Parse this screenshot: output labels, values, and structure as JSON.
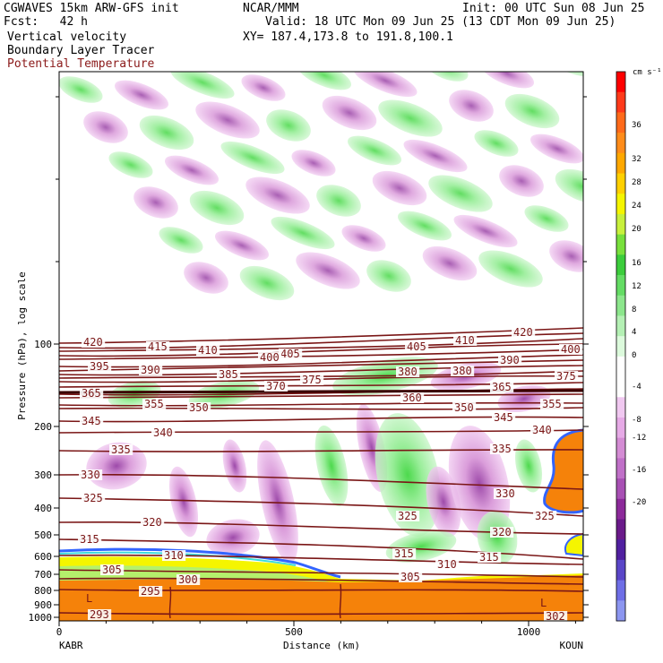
{
  "header": {
    "left_line1": "CGWAVES 15km ARW-GFS init",
    "left_line2": "Fcst:   42 h",
    "left_line3": "Vertical velocity",
    "left_line4": "Boundary Layer Tracer",
    "left_line5": "Potential Temperature",
    "center_line1": "NCAR/MMM",
    "right_line1": "Init: 00 UTC Sun 08 Jun 25",
    "right_line2": "Valid: 18 UTC Mon 09 Jun 25 (13 CDT Mon 09 Jun 25)",
    "right_line3": "XY= 187.4,173.8 to 191.8,100.1"
  },
  "colors": {
    "theta": "#7a1616",
    "tracer": "#f5820a",
    "up_light": "#c6f5c6",
    "up_mid": "#84ea84",
    "up_strong": "#2ed22e",
    "down_light": "#f0c8f0",
    "down_mid": "#d48cd4",
    "down_strong": "#8c2a9a"
  },
  "chart_data": {
    "type": "heatmap",
    "title": "Vertical velocity",
    "xlabel": "Distance (km)",
    "ylabel": "Pressure (hPa), log scale",
    "x_ticks": [
      "0",
      "500",
      "1000"
    ],
    "x_end_labels": [
      "KABR",
      "KOUN"
    ],
    "y_ticks": [
      "100",
      "200",
      "300",
      "400",
      "500",
      "600",
      "700",
      "800",
      "900",
      "1000"
    ],
    "y_scale": "log",
    "colorbar": {
      "unit": "cm s⁻¹",
      "tick_labels": [
        "36",
        "32",
        "28",
        "24",
        "20",
        "16",
        "12",
        "8",
        "4",
        "0",
        "-4",
        "-8",
        "-12",
        "-16",
        "-20"
      ],
      "colors": [
        "#ff0000",
        "#ff3a1a",
        "#ff6a1a",
        "#ff8c1a",
        "#ffa800",
        "#ffd000",
        "#f5f500",
        "#c8f03c",
        "#78e03c",
        "#3ccd3c",
        "#64dc64",
        "#8ce68c",
        "#b4f0b4",
        "#dcfadc",
        "#ffffff",
        "#ffffff",
        "#f0c8f0",
        "#e6aae6",
        "#d48cd4",
        "#c070c8",
        "#a850b4",
        "#8c2a9a",
        "#6a1a8a",
        "#5020a0",
        "#5a46c8",
        "#6e6ee6",
        "#8c96f0"
      ]
    },
    "theta_contours": [
      {
        "value": 420,
        "labels": [
          "420",
          "420"
        ]
      },
      {
        "value": 415,
        "labels": [
          "415"
        ]
      },
      {
        "value": 410,
        "labels": [
          "410",
          "410"
        ]
      },
      {
        "value": 405,
        "labels": [
          "405",
          "405"
        ]
      },
      {
        "value": 400,
        "labels": [
          "400",
          "400"
        ]
      },
      {
        "value": 395,
        "labels": [
          "395"
        ]
      },
      {
        "value": 390,
        "labels": [
          "390",
          "390"
        ]
      },
      {
        "value": 385,
        "labels": [
          "385"
        ]
      },
      {
        "value": 380,
        "labels": [
          "380",
          "380"
        ]
      },
      {
        "value": 375,
        "labels": [
          "375",
          "375"
        ]
      },
      {
        "value": 370,
        "labels": [
          "370"
        ]
      },
      {
        "value": 365,
        "labels": [
          "365",
          "365"
        ]
      },
      {
        "value": 360,
        "labels": [
          "360"
        ]
      },
      {
        "value": 355,
        "labels": [
          "355",
          "355"
        ]
      },
      {
        "value": 350,
        "labels": [
          "350",
          "350"
        ]
      },
      {
        "value": 345,
        "labels": [
          "345",
          "345"
        ]
      },
      {
        "value": 340,
        "labels": [
          "340",
          "340"
        ]
      },
      {
        "value": 335,
        "labels": [
          "335",
          "335"
        ]
      },
      {
        "value": 330,
        "labels": [
          "330",
          "330"
        ]
      },
      {
        "value": 325,
        "labels": [
          "325",
          "325",
          "325"
        ]
      },
      {
        "value": 320,
        "labels": [
          "320",
          "320"
        ]
      },
      {
        "value": 315,
        "labels": [
          "315",
          "315",
          "315"
        ]
      },
      {
        "value": 310,
        "labels": [
          "310",
          "310"
        ]
      },
      {
        "value": 305,
        "labels": [
          "305",
          "305"
        ]
      },
      {
        "value": 300,
        "labels": [
          "300"
        ]
      },
      {
        "value": 295,
        "labels": [
          "295"
        ]
      },
      {
        "value": 293,
        "labels": [
          "293"
        ]
      },
      {
        "value": 302,
        "labels": [
          "302"
        ]
      }
    ],
    "markers": [
      "L",
      "L"
    ]
  }
}
